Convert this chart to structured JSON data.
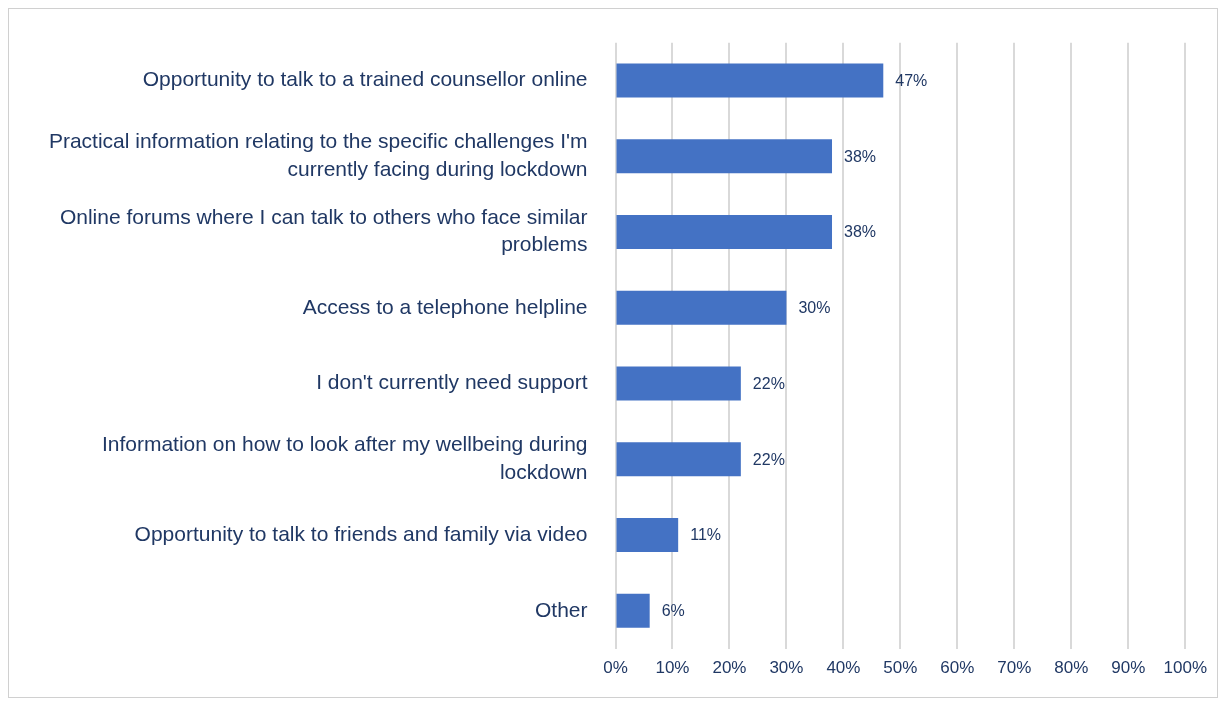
{
  "chart_data": {
    "type": "bar",
    "orientation": "horizontal",
    "categories": [
      "Opportunity to talk to a trained counsellor online",
      "Practical information relating to the specific challenges I'm currently facing during lockdown",
      "Online forums where I can talk to others who face similar problems",
      "Access to a telephone helpline",
      "I don't currently need support",
      "Information on how to look after my wellbeing during lockdown",
      "Opportunity to talk to friends and family via video",
      "Other"
    ],
    "values": [
      47,
      38,
      38,
      30,
      22,
      22,
      11,
      6
    ],
    "color": "#4472c4",
    "value_labels": [
      "47%",
      "38%",
      "38%",
      "30%",
      "22%",
      "22%",
      "11%",
      "6%"
    ],
    "xlim": [
      0,
      100
    ],
    "xticks": [
      {
        "value": 0,
        "label": "0%"
      },
      {
        "value": 10,
        "label": "10%"
      },
      {
        "value": 20,
        "label": "20%"
      },
      {
        "value": 30,
        "label": "30%"
      },
      {
        "value": 40,
        "label": "40%"
      },
      {
        "value": 50,
        "label": "50%"
      },
      {
        "value": 60,
        "label": "60%"
      },
      {
        "value": 70,
        "label": "70%"
      },
      {
        "value": 80,
        "label": "80%"
      },
      {
        "value": 90,
        "label": "90%"
      },
      {
        "value": 100,
        "label": "100%"
      }
    ],
    "grid": "x"
  }
}
